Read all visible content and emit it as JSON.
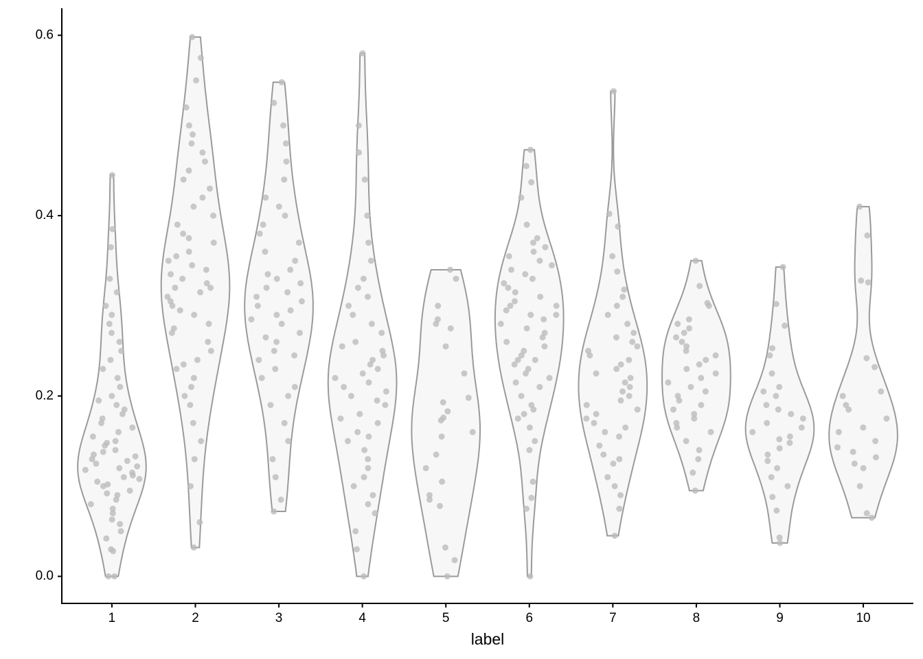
{
  "chart_data": {
    "type": "violin",
    "x_label": "label",
    "categories": [
      "1",
      "2",
      "3",
      "4",
      "5",
      "6",
      "7",
      "8",
      "9",
      "10"
    ],
    "values": [
      [
        0,
        0,
        0.028,
        0.03,
        0.042,
        0.05,
        0.058,
        0.063,
        0.07,
        0.075,
        0.08,
        0.085,
        0.09,
        0.092,
        0.095,
        0.1,
        0.102,
        0.105,
        0.108,
        0.11,
        0.112,
        0.115,
        0.118,
        0.12,
        0.122,
        0.125,
        0.128,
        0.13,
        0.133,
        0.135,
        0.138,
        0.14,
        0.145,
        0.148,
        0.15,
        0.155,
        0.16,
        0.165,
        0.17,
        0.175,
        0.18,
        0.185,
        0.19,
        0.195,
        0.2,
        0.21,
        0.22,
        0.23,
        0.24,
        0.25,
        0.26,
        0.27,
        0.28,
        0.29,
        0.3,
        0.315,
        0.33,
        0.365,
        0.385,
        0.445
      ],
      [
        0.032,
        0.06,
        0.1,
        0.13,
        0.15,
        0.17,
        0.19,
        0.2,
        0.21,
        0.22,
        0.23,
        0.235,
        0.24,
        0.25,
        0.26,
        0.27,
        0.275,
        0.28,
        0.29,
        0.295,
        0.3,
        0.305,
        0.31,
        0.315,
        0.32,
        0.32,
        0.325,
        0.33,
        0.335,
        0.34,
        0.345,
        0.35,
        0.355,
        0.36,
        0.37,
        0.375,
        0.38,
        0.39,
        0.4,
        0.41,
        0.42,
        0.43,
        0.44,
        0.45,
        0.46,
        0.47,
        0.48,
        0.49,
        0.5,
        0.52,
        0.55,
        0.575,
        0.598
      ],
      [
        0.072,
        0.085,
        0.11,
        0.13,
        0.15,
        0.17,
        0.19,
        0.2,
        0.21,
        0.22,
        0.23,
        0.24,
        0.245,
        0.25,
        0.26,
        0.265,
        0.27,
        0.28,
        0.285,
        0.29,
        0.295,
        0.3,
        0.305,
        0.31,
        0.315,
        0.32,
        0.325,
        0.33,
        0.335,
        0.34,
        0.35,
        0.36,
        0.37,
        0.38,
        0.39,
        0.4,
        0.41,
        0.42,
        0.44,
        0.46,
        0.48,
        0.5,
        0.525,
        0.548
      ],
      [
        0,
        0.03,
        0.05,
        0.07,
        0.08,
        0.09,
        0.1,
        0.11,
        0.12,
        0.13,
        0.14,
        0.15,
        0.155,
        0.16,
        0.17,
        0.175,
        0.18,
        0.19,
        0.195,
        0.2,
        0.205,
        0.21,
        0.215,
        0.22,
        0.225,
        0.23,
        0.235,
        0.24,
        0.245,
        0.25,
        0.255,
        0.26,
        0.27,
        0.28,
        0.29,
        0.3,
        0.31,
        0.32,
        0.33,
        0.35,
        0.37,
        0.4,
        0.44,
        0.47,
        0.5,
        0.58
      ],
      [
        0,
        0.018,
        0.032,
        0.078,
        0.085,
        0.09,
        0.105,
        0.12,
        0.135,
        0.155,
        0.16,
        0.173,
        0.176,
        0.183,
        0.193,
        0.198,
        0.225,
        0.255,
        0.275,
        0.28,
        0.285,
        0.3,
        0.33,
        0.34
      ],
      [
        0,
        0.075,
        0.087,
        0.105,
        0.14,
        0.15,
        0.165,
        0.175,
        0.18,
        0.185,
        0.19,
        0.2,
        0.21,
        0.215,
        0.22,
        0.225,
        0.23,
        0.235,
        0.24,
        0.24,
        0.245,
        0.25,
        0.255,
        0.26,
        0.265,
        0.27,
        0.275,
        0.28,
        0.285,
        0.29,
        0.29,
        0.295,
        0.3,
        0.3,
        0.305,
        0.31,
        0.315,
        0.32,
        0.325,
        0.33,
        0.335,
        0.34,
        0.345,
        0.35,
        0.355,
        0.36,
        0.365,
        0.37,
        0.375,
        0.39,
        0.42,
        0.437,
        0.455,
        0.473
      ],
      [
        0.045,
        0.075,
        0.09,
        0.1,
        0.11,
        0.125,
        0.13,
        0.135,
        0.145,
        0.155,
        0.16,
        0.165,
        0.17,
        0.175,
        0.18,
        0.185,
        0.19,
        0.195,
        0.2,
        0.205,
        0.21,
        0.215,
        0.22,
        0.225,
        0.23,
        0.235,
        0.24,
        0.245,
        0.25,
        0.255,
        0.26,
        0.265,
        0.27,
        0.28,
        0.29,
        0.3,
        0.31,
        0.318,
        0.338,
        0.355,
        0.388,
        0.402,
        0.538
      ],
      [
        0.095,
        0.115,
        0.13,
        0.14,
        0.15,
        0.16,
        0.165,
        0.17,
        0.175,
        0.18,
        0.185,
        0.19,
        0.195,
        0.2,
        0.205,
        0.21,
        0.215,
        0.22,
        0.225,
        0.23,
        0.235,
        0.24,
        0.245,
        0.25,
        0.255,
        0.26,
        0.265,
        0.27,
        0.275,
        0.28,
        0.285,
        0.3,
        0.303,
        0.322,
        0.35
      ],
      [
        0.037,
        0.043,
        0.073,
        0.088,
        0.1,
        0.11,
        0.12,
        0.128,
        0.135,
        0.142,
        0.148,
        0.152,
        0.155,
        0.16,
        0.165,
        0.17,
        0.175,
        0.18,
        0.185,
        0.19,
        0.2,
        0.205,
        0.21,
        0.225,
        0.245,
        0.253,
        0.278,
        0.302,
        0.343
      ],
      [
        0.065,
        0.07,
        0.1,
        0.12,
        0.125,
        0.132,
        0.138,
        0.143,
        0.15,
        0.16,
        0.165,
        0.175,
        0.185,
        0.19,
        0.2,
        0.205,
        0.232,
        0.242,
        0.326,
        0.328,
        0.378,
        0.41
      ]
    ],
    "ylim": [
      -0.03,
      0.63
    ],
    "yticks": [
      {
        "value": 0,
        "label": "0.0"
      },
      0.2,
      0.4,
      0.6
    ],
    "violin_color": "#9a9a9a",
    "violin_fill": "#f7f7f7",
    "point_color": "#bcbcbc"
  }
}
